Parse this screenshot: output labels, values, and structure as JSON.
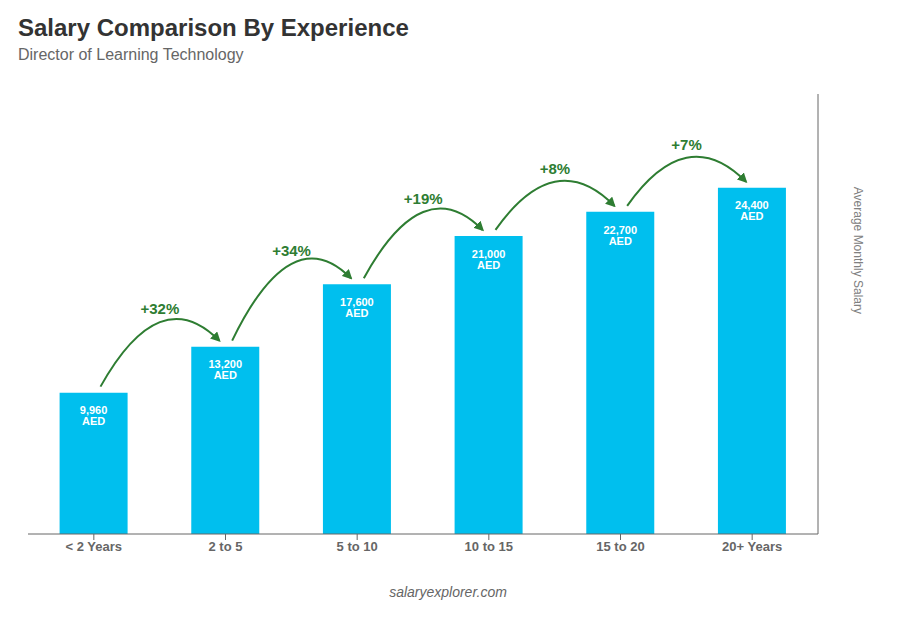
{
  "chart_data": {
    "type": "bar",
    "title": "Salary Comparison By Experience",
    "subtitle": "Director of Learning Technology",
    "categories": [
      "< 2 Years",
      "2 to 5",
      "5 to 10",
      "10 to 15",
      "15 to 20",
      "20+ Years"
    ],
    "values": [
      9960,
      13200,
      17600,
      21000,
      22700,
      24400
    ],
    "value_labels": [
      "9,960 AED",
      "13,200 AED",
      "17,600 AED",
      "21,000 AED",
      "22,700 AED",
      "24,400 AED"
    ],
    "data_labels": true,
    "color": "#00BFEE",
    "ylim": [
      0,
      31000
    ],
    "ylabel": "Average Monthly Salary",
    "tick_labels": "x",
    "grid": false,
    "annotations": [
      {
        "text": "+32%",
        "color": "#2E7D32"
      },
      {
        "text": "+34%",
        "color": "#2E7D32"
      },
      {
        "text": "+19%",
        "color": "#2E7D32"
      },
      {
        "text": "+8%",
        "color": "#2E7D32"
      },
      {
        "text": "+7%",
        "color": "#2E7D32"
      }
    ],
    "watermark": "salaryexplorer.com"
  }
}
